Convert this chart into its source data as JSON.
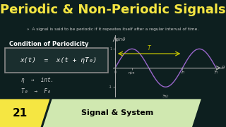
{
  "bg_color": "#0d1f1f",
  "title": "Periodic & Non-Periodic Signals",
  "title_color": "#f5e642",
  "subtitle": "»  A signal is said to be periodic if it repeates itself after a regular interval of time.",
  "subtitle_color": "#cccccc",
  "condition_title": "Condition of Periodicity",
  "condition_title_color": "#ffffff",
  "formula": "x(t)  =  x(t + ηT₀)",
  "formula_color": "#ffffff",
  "note1": "η  →  int.",
  "note2": "T₀  →  F₀",
  "note_color": "#cccccc",
  "sin_label": "sinθ",
  "theta_label": "θ",
  "axis_color": "#aaaaaa",
  "sine_color": "#9966cc",
  "arrow_color": "#c8c800",
  "period_label": "T",
  "period_label_color": "#c8c800",
  "badge_bg": "#f5e642",
  "badge_text": "21",
  "badge_text_color": "#000000",
  "series_label": "Signal & System",
  "series_label_color": "#000000",
  "series_bg": "#d0e8b0"
}
